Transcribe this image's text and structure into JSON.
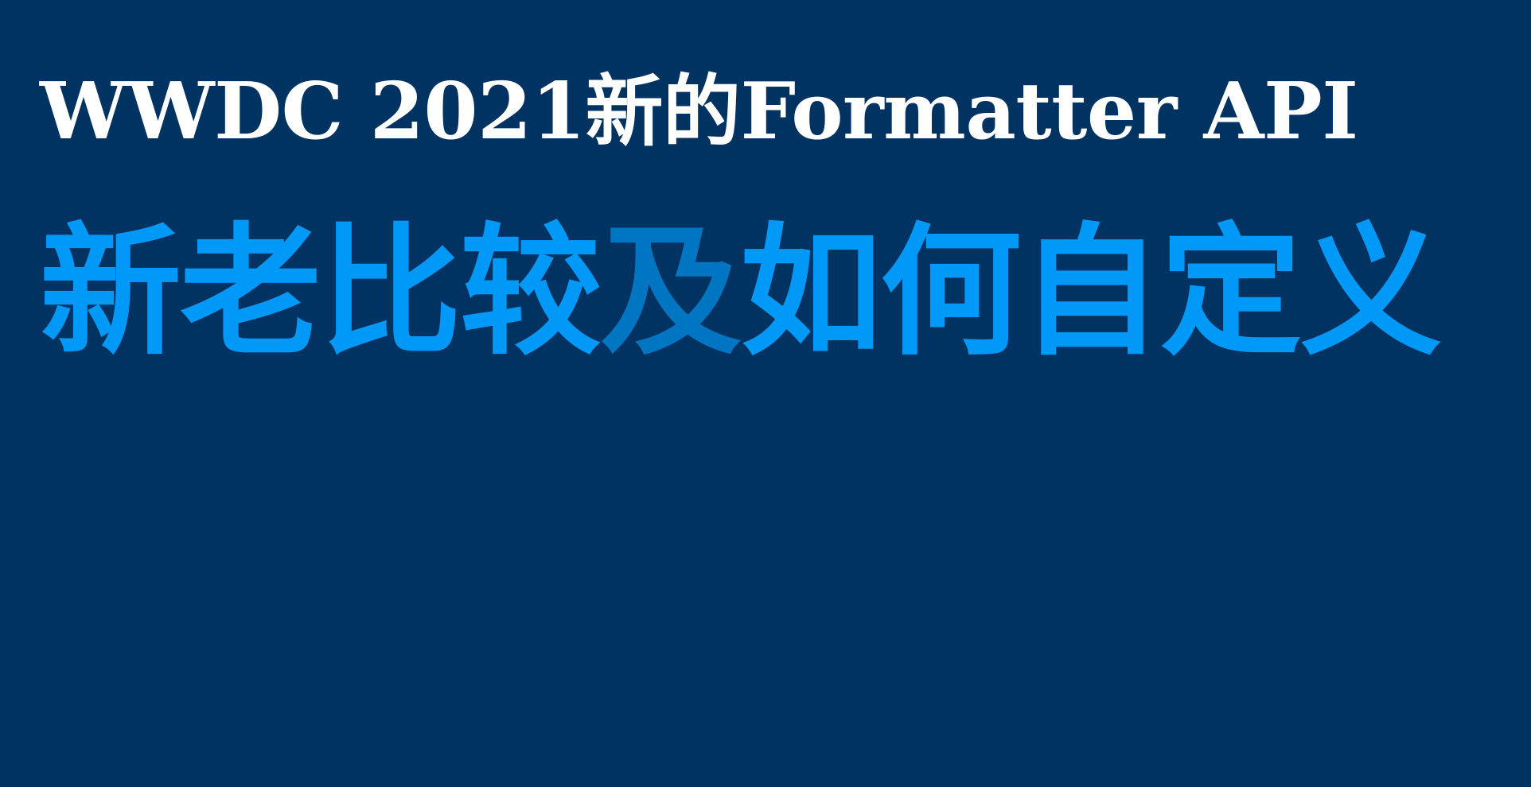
{
  "slide": {
    "title": "WWDC 2021新的Formatter API",
    "subtitle": {
      "part1": "新老比较",
      "part2": "及",
      "part3": "如何自定义"
    },
    "colors": {
      "background": "#003262",
      "title": "#ffffff",
      "subtitle_main": "#0099f7",
      "subtitle_accent": "#0075c2"
    }
  }
}
